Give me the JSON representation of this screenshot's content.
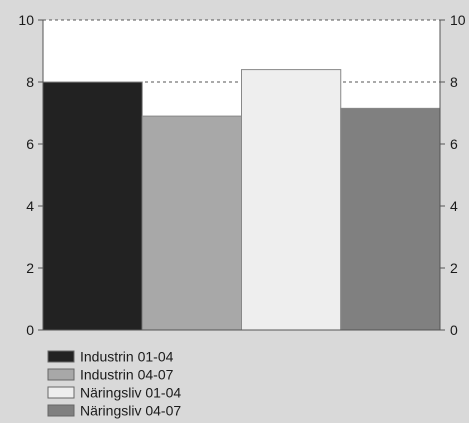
{
  "chart_data": {
    "type": "bar",
    "categories": [
      "Industrin 01-04",
      "Industrin 04-07",
      "Näringsliv 01-04",
      "Näringsliv  04-07"
    ],
    "values": [
      8.0,
      6.9,
      8.4,
      7.15
    ],
    "colors": [
      "#222222",
      "#a8a8a8",
      "#eeeeee",
      "#808080"
    ],
    "ylim": [
      0,
      10
    ],
    "yticks": [
      "0",
      "2",
      "4",
      "6",
      "8",
      "10"
    ],
    "ytick_values": [
      0,
      2,
      4,
      6,
      8,
      10
    ],
    "gridlines": [
      8,
      10
    ],
    "grid_style": "dashed",
    "legend_position": "bottom-left",
    "title": "",
    "xlabel": "",
    "ylabel": ""
  }
}
